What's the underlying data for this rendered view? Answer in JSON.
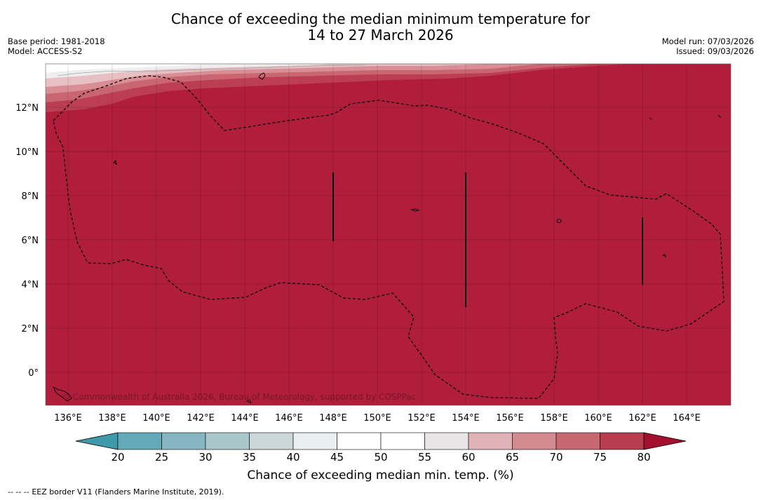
{
  "title": {
    "line1": "Chance of exceeding the median minimum temperature for",
    "line2": "14 to 27 March 2026"
  },
  "meta": {
    "base_period": "Base period: 1981-2018",
    "model": "Model: ACCESS-S2",
    "model_run": "Model run: 07/03/2026",
    "issued": "Issued: 09/03/2026"
  },
  "map": {
    "lon_labels": [
      "136°E",
      "138°E",
      "140°E",
      "142°E",
      "144°E",
      "146°E",
      "148°E",
      "150°E",
      "152°E",
      "154°E",
      "156°E",
      "158°E",
      "160°E",
      "162°E",
      "164°E"
    ],
    "lat_labels": [
      "12°N",
      "10°N",
      "8°N",
      "6°N",
      "4°N",
      "2°N",
      "0°"
    ],
    "copyright": "© Commonwealth of Australia 2026, Bureau of Meteorology, supported by COSPPac",
    "colors": {
      "main_fill": "#b01e3c",
      "band_75": "#bb3e52",
      "band_70": "#c96672",
      "band_65": "#d98e95",
      "band_60": "#e7c0c3",
      "band_55": "#eeeeee",
      "band_50": "#ffffff"
    }
  },
  "colorbar": {
    "ticks": [
      "20",
      "25",
      "30",
      "35",
      "40",
      "45",
      "50",
      "55",
      "60",
      "65",
      "70",
      "75",
      "80"
    ],
    "colors": [
      "#64a9b8",
      "#86b5c2",
      "#a9c7cb",
      "#cbd7d9",
      "#e9eef0",
      "#ffffff",
      "#ffffff",
      "#e8e5e6",
      "#dfb3b8",
      "#d48a91",
      "#c76770",
      "#b83e4f"
    ],
    "under_color": "#3e9aab",
    "over_color": "#a3112e",
    "label": "Chance of exceeding median min. temp. (%)"
  },
  "footer": {
    "legend_symbol": "-- -- --",
    "text": "EEZ border V11 (Flanders Marine Institute, 2019)."
  }
}
